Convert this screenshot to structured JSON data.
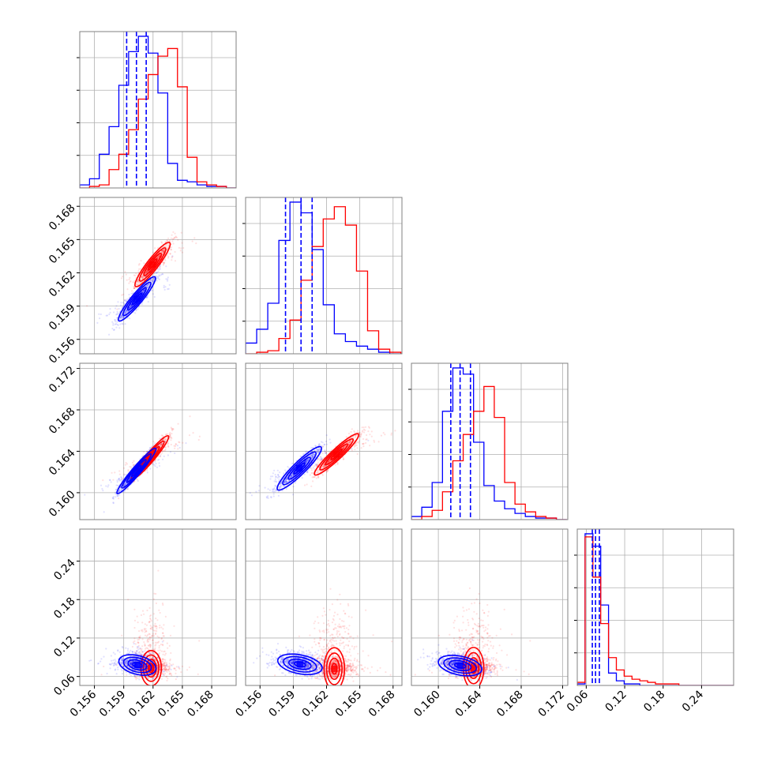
{
  "chart_data": {
    "type": "corner",
    "grid": true,
    "series": [
      {
        "color": "#0000ff",
        "quantile_lines": "dashed"
      },
      {
        "color": "#ff0000"
      }
    ],
    "dims": [
      {
        "range": [
          0.1545,
          0.1705
        ],
        "ticks": [
          0.156,
          0.159,
          0.162,
          0.165,
          0.168
        ],
        "tick_labels": [
          "0.156",
          "0.159",
          "0.162",
          "0.165",
          "0.168"
        ],
        "hist": {
          "edges": [
            0.1545,
            0.1555,
            0.1565,
            0.1575,
            0.1585,
            0.1595,
            0.1605,
            0.1615,
            0.1625,
            0.1635,
            0.1645,
            0.1655,
            0.1665,
            0.1675,
            0.1685,
            0.1695,
            0.1705
          ],
          "blue": [
            2,
            6,
            22,
            40,
            67,
            89,
            99,
            88,
            62,
            16,
            5,
            4,
            2,
            1,
            1,
            0
          ],
          "red": [
            0,
            1,
            2,
            12,
            22,
            38,
            58,
            74,
            86,
            91,
            66,
            20,
            4,
            2,
            1,
            0
          ]
        },
        "quantiles_blue": [
          0.1593,
          0.1603,
          0.1613
        ]
      },
      {
        "range": [
          0.1547,
          0.1688
        ],
        "ticks": [
          0.156,
          0.159,
          0.162,
          0.165,
          0.168
        ],
        "tick_labels": [
          "0.156",
          "0.159",
          "0.162",
          "0.165",
          "0.168"
        ],
        "hist": {
          "edges": [
            0.1547,
            0.1557,
            0.1567,
            0.1577,
            0.1587,
            0.1597,
            0.1607,
            0.1617,
            0.1627,
            0.1637,
            0.1647,
            0.1657,
            0.1667,
            0.1677,
            0.1687
          ],
          "blue": [
            7,
            16,
            33,
            74,
            99,
            92,
            68,
            32,
            13,
            8,
            5,
            3,
            1,
            0
          ],
          "red": [
            0,
            1,
            2,
            10,
            22,
            48,
            70,
            88,
            96,
            84,
            54,
            15,
            3,
            1
          ]
        },
        "quantiles_blue": [
          0.1583,
          0.1597,
          0.1607
        ]
      },
      {
        "range": [
          0.1574,
          0.1725
        ],
        "ticks": [
          0.16,
          0.164,
          0.168,
          0.172
        ],
        "tick_labels": [
          "0.160",
          "0.164",
          "0.168",
          "0.172"
        ],
        "hist": {
          "edges": [
            0.1574,
            0.1584,
            0.1594,
            0.1604,
            0.1614,
            0.1624,
            0.1634,
            0.1644,
            0.1654,
            0.1664,
            0.1674,
            0.1684,
            0.1694,
            0.1704,
            0.1714,
            0.1724
          ],
          "blue": [
            2,
            8,
            24,
            70,
            98,
            94,
            50,
            22,
            12,
            7,
            4,
            2,
            1,
            1,
            0
          ],
          "red": [
            0,
            2,
            6,
            18,
            38,
            55,
            70,
            86,
            66,
            24,
            10,
            5,
            2,
            1,
            0
          ]
        },
        "quantiles_blue": [
          0.1612,
          0.1621,
          0.1631
        ]
      },
      {
        "range": [
          0.046,
          0.29
        ],
        "ticks": [
          0.06,
          0.12,
          0.18,
          0.24
        ],
        "tick_labels": [
          "0.06",
          "0.12",
          "0.18",
          "0.24"
        ],
        "hist": {
          "edges": [
            0.046,
            0.0582,
            0.0704,
            0.0826,
            0.0948,
            0.107,
            0.1192,
            0.1314,
            0.1436,
            0.1558,
            0.168,
            0.1802,
            0.1924,
            0.2046,
            0.2168,
            0.229,
            0.2412,
            0.2534,
            0.2656,
            0.2778,
            0.29
          ],
          "blue": [
            1,
            98,
            90,
            52,
            8,
            3,
            1,
            1,
            0,
            0,
            0,
            0,
            0,
            0,
            0,
            0,
            0,
            0,
            0,
            0
          ],
          "red": [
            2,
            96,
            70,
            40,
            18,
            10,
            6,
            4,
            3,
            2,
            1,
            1,
            1,
            0,
            0,
            0,
            0,
            0,
            0,
            0
          ]
        },
        "quantiles_blue": [
          0.0695,
          0.0745,
          0.0805
        ]
      }
    ],
    "pairs": [
      {
        "x": 0,
        "y": 1,
        "blue": {
          "mean": [
            0.16035,
            0.15965
          ],
          "sd": [
            0.00095,
            0.001
          ],
          "rho": 0.93
        },
        "red": {
          "mean": [
            0.16195,
            0.16275
          ],
          "sd": [
            0.0009,
            0.001
          ],
          "rho": 0.92
        }
      },
      {
        "x": 0,
        "y": 2,
        "blue": {
          "mean": [
            0.1603,
            0.1621
          ],
          "sd": [
            0.001,
            0.0011
          ],
          "rho": 0.96
        },
        "red": {
          "mean": [
            0.1617,
            0.1634
          ],
          "sd": [
            0.00095,
            0.00105
          ],
          "rho": 0.95
        }
      },
      {
        "x": 1,
        "y": 2,
        "blue": {
          "mean": [
            0.15955,
            0.16235
          ],
          "sd": [
            0.001,
            0.00105
          ],
          "rho": 0.92
        },
        "red": {
          "mean": [
            0.1629,
            0.1637
          ],
          "sd": [
            0.001,
            0.001
          ],
          "rho": 0.94
        }
      },
      {
        "x": 0,
        "y": 3,
        "blue": {
          "mean": [
            0.1604,
            0.078
          ],
          "sd": [
            0.00095,
            0.008
          ],
          "rho": -0.35
        },
        "red": {
          "mean": [
            0.1618,
            0.073
          ],
          "sd": [
            0.0009,
            0.008
          ],
          "rho": 0.0
        }
      },
      {
        "x": 1,
        "y": 3,
        "blue": {
          "mean": [
            0.1596,
            0.079
          ],
          "sd": [
            0.001,
            0.008
          ],
          "rho": -0.35
        },
        "red": {
          "mean": [
            0.1627,
            0.072
          ],
          "sd": [
            0.00095,
            0.008
          ],
          "rho": 0.0
        }
      },
      {
        "x": 2,
        "y": 3,
        "blue": {
          "mean": [
            0.1621,
            0.077
          ],
          "sd": [
            0.00105,
            0.008
          ],
          "rho": -0.35
        },
        "red": {
          "mean": [
            0.1634,
            0.073
          ],
          "sd": [
            0.001,
            0.008
          ],
          "rho": 0.0
        }
      }
    ]
  }
}
